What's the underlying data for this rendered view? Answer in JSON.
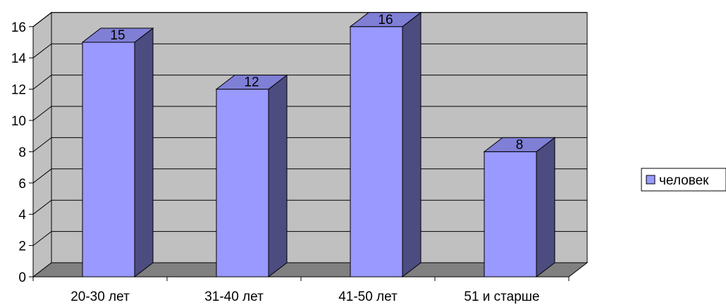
{
  "chart_data": {
    "type": "bar",
    "style": "3d-column",
    "categories": [
      "20-30 лет",
      "31-40 лет",
      "41-50 лет",
      "51 и старше"
    ],
    "series": [
      {
        "name": "человек",
        "values": [
          15,
          12,
          16,
          8
        ],
        "color": "#9999ff",
        "side_color": "#4c4c80",
        "top_color": "#7f7fd6"
      }
    ],
    "ylim": [
      0,
      16
    ],
    "yticks": [
      0,
      2,
      4,
      6,
      8,
      10,
      12,
      14,
      16
    ],
    "grid": true,
    "legend": "right",
    "wall_color": "#c0c0c0",
    "floor_color": "#808080",
    "title": "",
    "xlabel": "",
    "ylabel": ""
  }
}
